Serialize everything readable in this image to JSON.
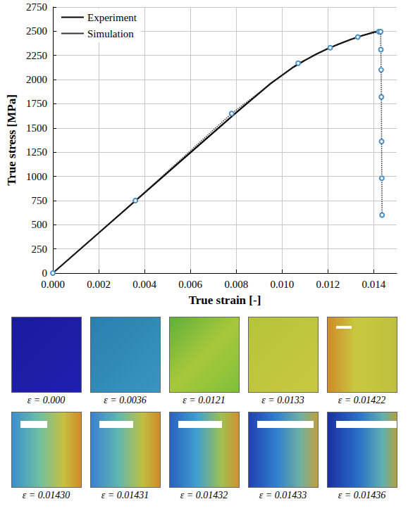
{
  "chart_data": {
    "type": "line",
    "x_label": "True strain [-]",
    "y_label": "True stress [MPa]",
    "xlim": [
      0,
      0.015
    ],
    "ylim": [
      0,
      2750
    ],
    "xticks": [
      {
        "value": 0,
        "label": "0.000"
      },
      {
        "value": 0.002,
        "label": "0.002"
      },
      {
        "value": 0.004,
        "label": "0.004"
      },
      {
        "value": 0.006,
        "label": "0.006"
      },
      {
        "value": 0.008,
        "label": "0.008"
      },
      {
        "value": 0.01,
        "label": "0.010"
      },
      {
        "value": 0.012,
        "label": "0.012"
      },
      {
        "value": 0.014,
        "label": "0.014"
      }
    ],
    "yticks": [
      0,
      250,
      500,
      750,
      1000,
      1250,
      1500,
      1750,
      2000,
      2250,
      2500,
      2750
    ],
    "grid": true,
    "legend": "upper left",
    "series": [
      {
        "name": "Experiment",
        "color": "#000000",
        "line_style": "solid",
        "marker": "none",
        "x": [
          0,
          0.002,
          0.004,
          0.006,
          0.008,
          0.009,
          0.0095,
          0.01,
          0.0105,
          0.011,
          0.0115,
          0.012,
          0.0125,
          0.013,
          0.0135,
          0.014,
          0.01432
        ],
        "values": [
          0,
          415,
          830,
          1245,
          1660,
          1860,
          1960,
          2045,
          2130,
          2200,
          2265,
          2320,
          2370,
          2415,
          2455,
          2490,
          2505
        ]
      },
      {
        "name": "Simulation",
        "color": "#333333",
        "line_style": "dotted",
        "marker": "circle",
        "x": [
          0,
          0.0036,
          0.0078,
          0.0107,
          0.0121,
          0.0133,
          0.01422,
          0.0143,
          0.01431,
          0.01432,
          0.01433,
          0.01434,
          0.01435,
          0.01436
        ],
        "values": [
          0,
          750,
          1650,
          2170,
          2330,
          2440,
          2495,
          2495,
          2310,
          2100,
          1820,
          1360,
          980,
          600
        ]
      }
    ],
    "snapshots": [
      "ε = 0.000",
      "ε = 0.0036",
      "ε = 0.0121",
      "ε = 0.0133",
      "ε = 0.01422",
      "ε = 0.01430",
      "ε = 0.01431",
      "ε = 0.01432",
      "ε = 0.01433",
      "ε = 0.01436"
    ]
  }
}
